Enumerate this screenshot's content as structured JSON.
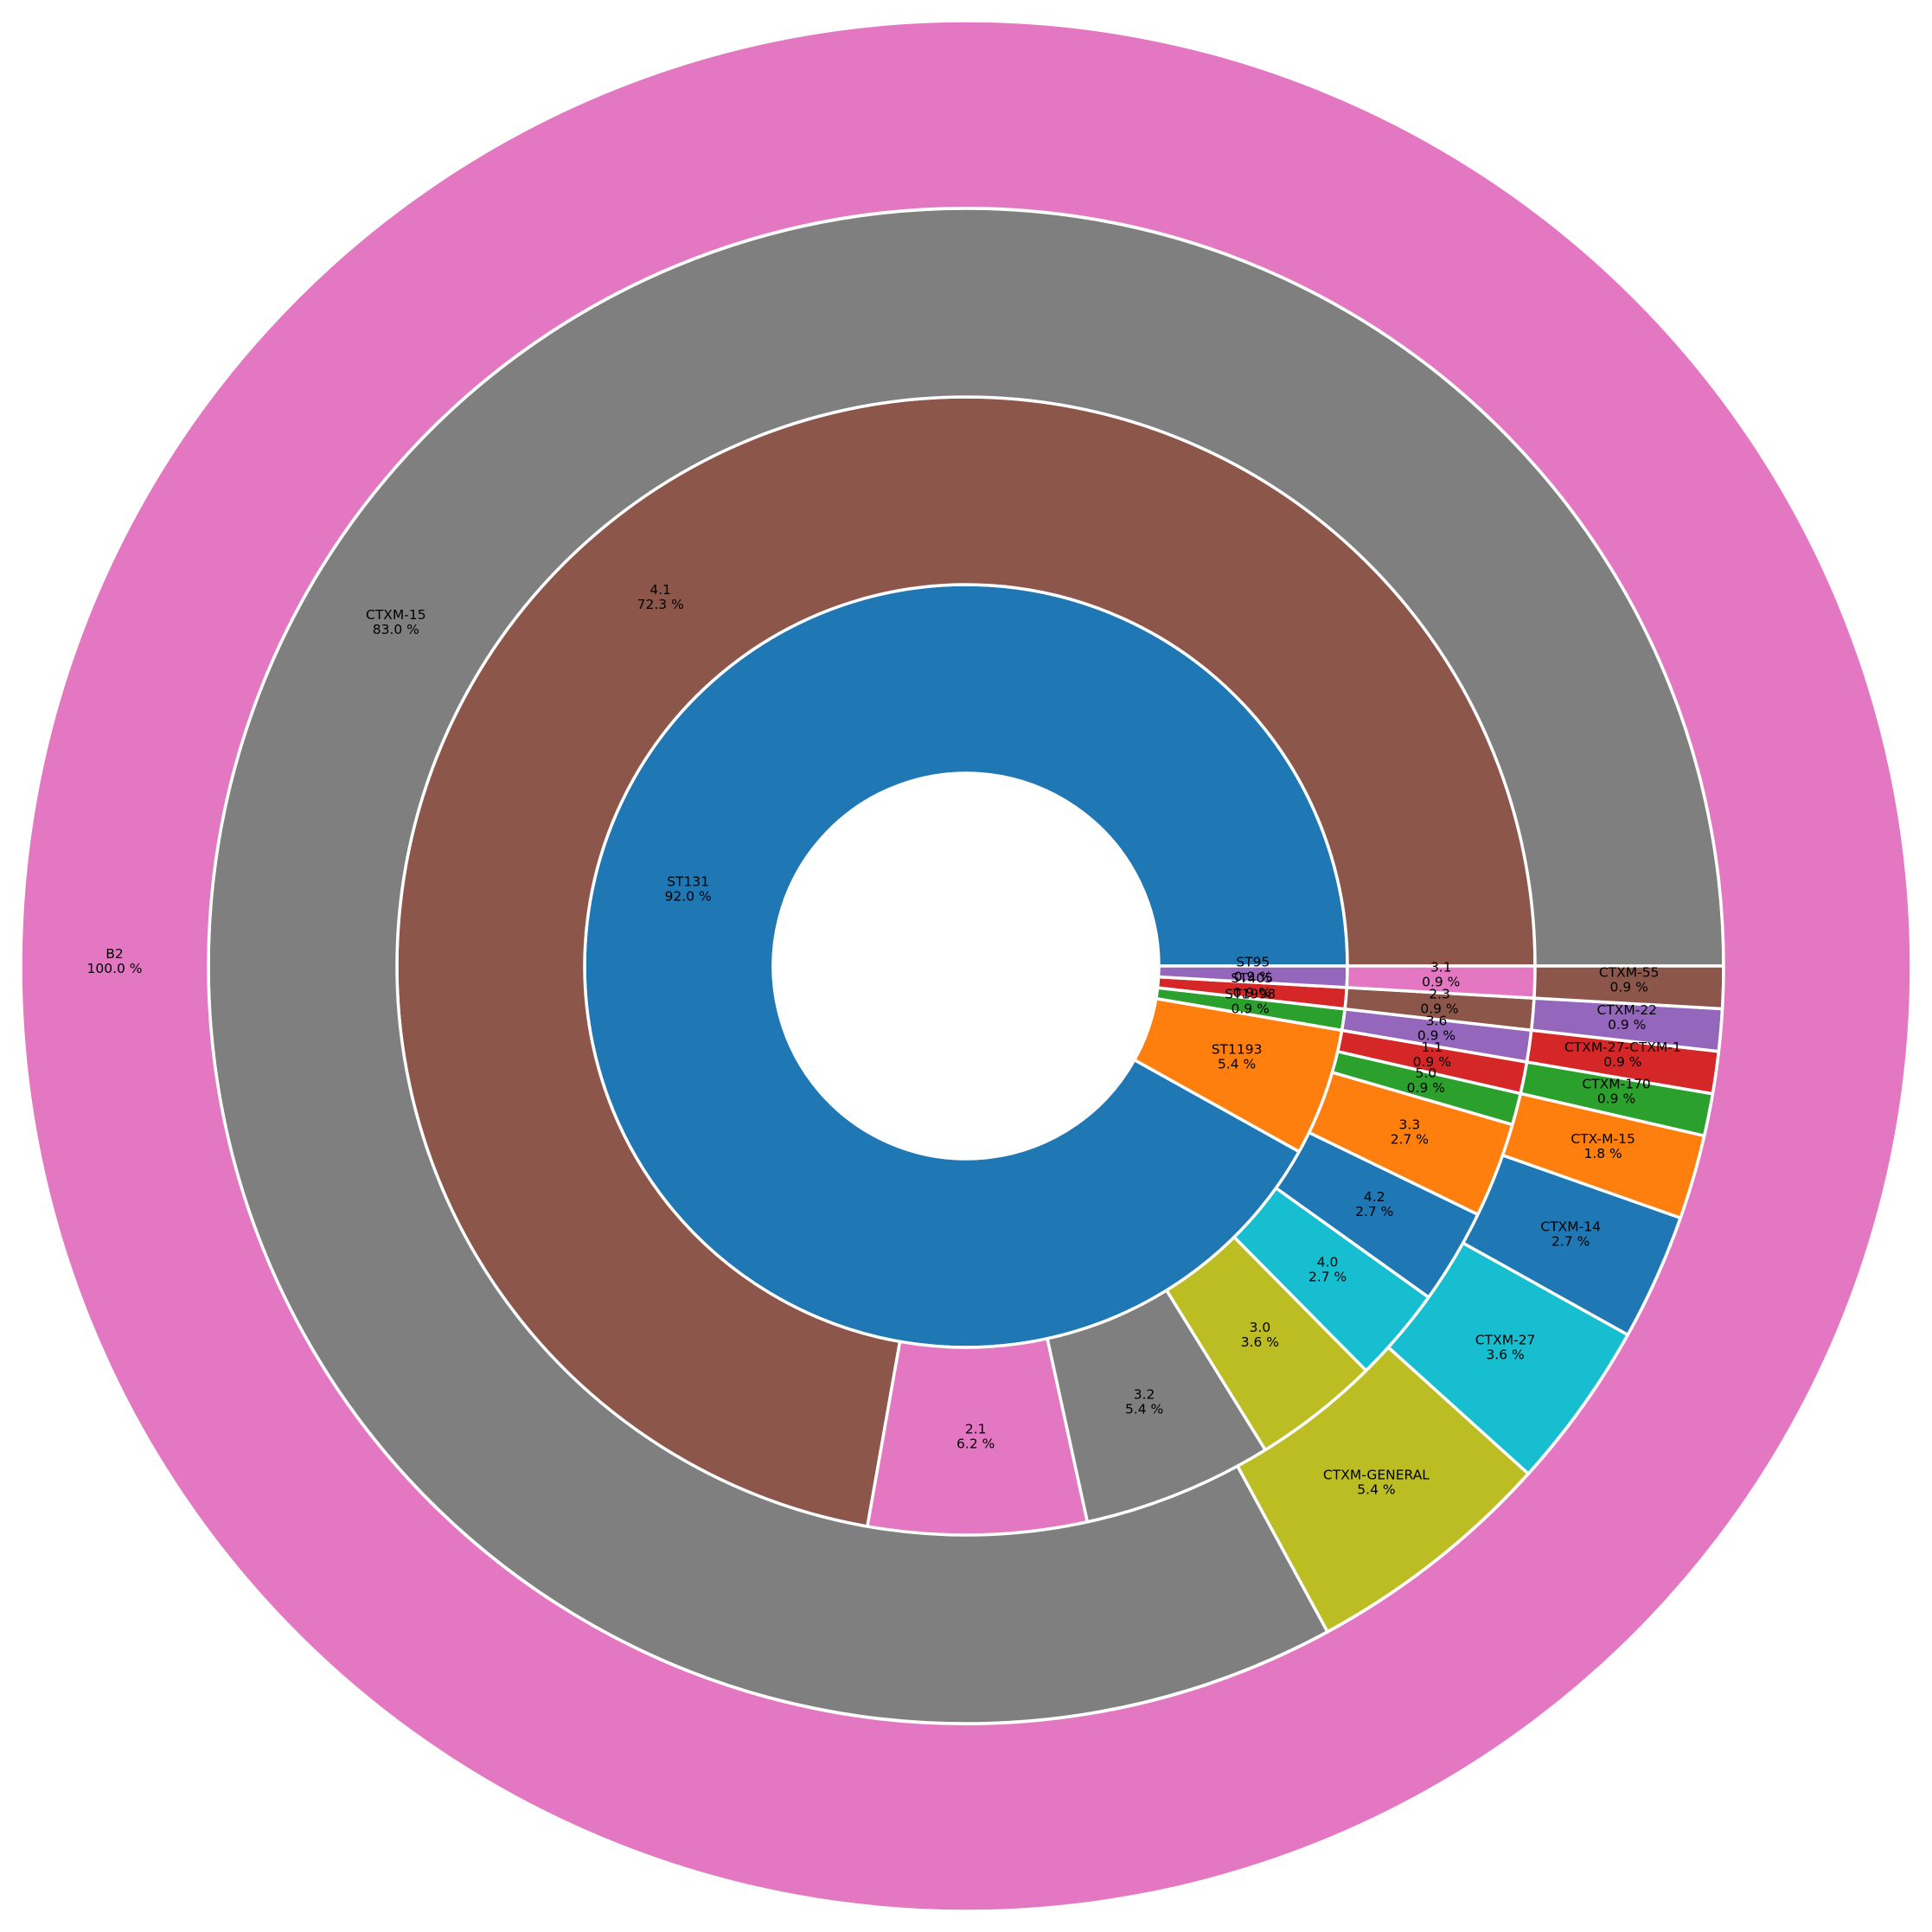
{
  "chart_data": {
    "type": "sunburst",
    "rings": [
      {
        "level": 1,
        "segments": [
          {
            "name": "ST131",
            "percent": 92.0,
            "label": "92.0 %",
            "color": "#1f77b4"
          },
          {
            "name": "ST1193",
            "percent": 5.4,
            "label": "5.4 %",
            "color": "#ff7f0e"
          },
          {
            "name": "ST1998",
            "percent": 0.9,
            "label": "0.9 %",
            "color": "#2ca02c"
          },
          {
            "name": "ST405",
            "percent": 0.9,
            "label": "0.9 %",
            "color": "#d62728"
          },
          {
            "name": "ST95",
            "percent": 0.9,
            "label": "0.9 %",
            "color": "#9467bd"
          }
        ]
      },
      {
        "level": 2,
        "segments": [
          {
            "name": "4.1",
            "percent": 72.3,
            "label": "72.3 %",
            "color": "#8c564b"
          },
          {
            "name": "2.1",
            "percent": 6.2,
            "label": "6.2 %",
            "color": "#e377c2"
          },
          {
            "name": "3.2",
            "percent": 5.4,
            "label": "5.4 %",
            "color": "#7f7f7f"
          },
          {
            "name": "3.0",
            "percent": 3.6,
            "label": "3.6 %",
            "color": "#bcbd22"
          },
          {
            "name": "4.0",
            "percent": 2.7,
            "label": "2.7 %",
            "color": "#17becf"
          },
          {
            "name": "4.2",
            "percent": 2.7,
            "label": "2.7 %",
            "color": "#1f77b4"
          },
          {
            "name": "3.3",
            "percent": 2.7,
            "label": "2.7 %",
            "color": "#ff7f0e"
          },
          {
            "name": "5.0",
            "percent": 0.9,
            "label": "0.9 %",
            "color": "#2ca02c"
          },
          {
            "name": "1.1",
            "percent": 0.9,
            "label": "0.9 %",
            "color": "#d62728"
          },
          {
            "name": "3.6",
            "percent": 0.9,
            "label": "0.9 %",
            "color": "#9467bd"
          },
          {
            "name": "2.3",
            "percent": 0.9,
            "label": "0.9 %",
            "color": "#8c564b"
          },
          {
            "name": "3.1",
            "percent": 0.9,
            "label": "0.9 %",
            "color": "#e377c2"
          }
        ]
      },
      {
        "level": 3,
        "segments": [
          {
            "name": "CTXM-15",
            "percent": 83.0,
            "label": "83.0 %",
            "color": "#7f7f7f"
          },
          {
            "name": "CTXM-GENERAL",
            "percent": 5.4,
            "label": "5.4 %",
            "color": "#bcbd22"
          },
          {
            "name": "CTXM-27",
            "percent": 3.6,
            "label": "3.6 %",
            "color": "#17becf"
          },
          {
            "name": "CTXM-14",
            "percent": 2.7,
            "label": "2.7 %",
            "color": "#1f77b4"
          },
          {
            "name": "CTX-M-15",
            "percent": 1.8,
            "label": "1.8 %",
            "color": "#ff7f0e"
          },
          {
            "name": "CTXM-170",
            "percent": 0.9,
            "label": "0.9 %",
            "color": "#2ca02c"
          },
          {
            "name": "CTXM-27-CTXM-1",
            "percent": 0.9,
            "label": "0.9 %",
            "color": "#d62728"
          },
          {
            "name": "CTXM-22",
            "percent": 0.9,
            "label": "0.9 %",
            "color": "#9467bd"
          },
          {
            "name": "CTXM-55",
            "percent": 0.9,
            "label": "0.9 %",
            "color": "#8c564b"
          }
        ]
      },
      {
        "level": 4,
        "segments": [
          {
            "name": "B2",
            "percent": 100.0,
            "label": "100.0 %",
            "color": "#e377c2"
          }
        ]
      }
    ]
  }
}
